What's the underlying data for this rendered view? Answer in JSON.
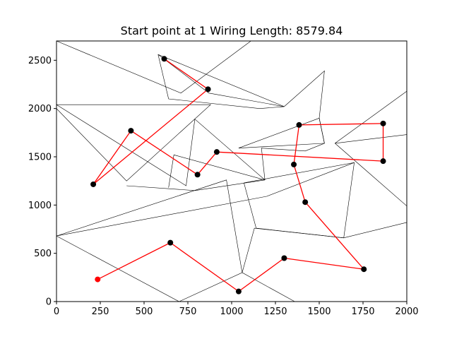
{
  "chart_data": {
    "type": "line",
    "title": "Start point at 1 Wiring Length: 8579.84",
    "xlim": [
      0,
      2000
    ],
    "ylim": [
      0,
      2700
    ],
    "x_ticks": [
      0,
      250,
      500,
      750,
      1000,
      1250,
      1500,
      1750,
      2000
    ],
    "y_ticks": [
      0,
      500,
      1000,
      1500,
      2000,
      2500
    ],
    "grid": false,
    "route_color": "#ff0000",
    "point_color": "#000000",
    "start_color": "#ff0000",
    "route": [
      [
        235,
        230
      ],
      [
        650,
        610
      ],
      [
        1040,
        105
      ],
      [
        1300,
        450
      ],
      [
        1755,
        335
      ],
      [
        1420,
        1030
      ],
      [
        1355,
        1420
      ],
      [
        1385,
        1830
      ],
      [
        1865,
        1845
      ],
      [
        1865,
        1455
      ],
      [
        915,
        1550
      ],
      [
        805,
        1315
      ],
      [
        425,
        1770
      ],
      [
        210,
        1215
      ],
      [
        865,
        2200
      ],
      [
        615,
        2515
      ]
    ],
    "background_lines": [
      [
        [
          0,
          2700
        ],
        [
          710,
          2160
        ],
        [
          1110,
          2700
        ]
      ],
      [
        [
          580,
          2560
        ],
        [
          870,
          2160
        ],
        [
          1300,
          2020
        ],
        [
          580,
          2560
        ]
      ],
      [
        [
          580,
          2560
        ],
        [
          640,
          2100
        ],
        [
          1160,
          2000
        ],
        [
          1300,
          2020
        ]
      ],
      [
        [
          0,
          2040
        ],
        [
          880,
          2040
        ],
        [
          400,
          1250
        ],
        [
          0,
          2000
        ],
        [
          0,
          2040
        ]
      ],
      [
        [
          0,
          2040
        ],
        [
          740,
          1200
        ],
        [
          790,
          1890
        ],
        [
          1190,
          1260
        ],
        [
          670,
          1520
        ],
        [
          640,
          1180
        ]
      ],
      [
        [
          400,
          1200
        ],
        [
          790,
          1150
        ],
        [
          1190,
          1260
        ]
      ],
      [
        [
          1190,
          1260
        ],
        [
          1170,
          1590
        ],
        [
          1420,
          1560
        ],
        [
          1530,
          1640
        ],
        [
          1500,
          1900
        ],
        [
          1530,
          2390
        ],
        [
          1300,
          2020
        ]
      ],
      [
        [
          1040,
          1590
        ],
        [
          1530,
          1640
        ],
        [
          1500,
          1900
        ],
        [
          1040,
          1590
        ]
      ],
      [
        [
          1590,
          1640
        ],
        [
          2000,
          2180
        ]
      ],
      [
        [
          1590,
          1640
        ],
        [
          2000,
          1730
        ]
      ],
      [
        [
          1590,
          1640
        ],
        [
          2000,
          990
        ]
      ],
      [
        [
          1070,
          1230
        ],
        [
          1140,
          760
        ],
        [
          1640,
          660
        ],
        [
          1700,
          1440
        ],
        [
          1070,
          1230
        ]
      ],
      [
        [
          1640,
          660
        ],
        [
          2000,
          820
        ]
      ],
      [
        [
          0,
          680
        ],
        [
          1200,
          1090
        ],
        [
          1700,
          1440
        ]
      ],
      [
        [
          0,
          680
        ],
        [
          700,
          0
        ],
        [
          1060,
          300
        ],
        [
          1360,
          0
        ]
      ],
      [
        [
          0,
          680
        ],
        [
          970,
          1260
        ],
        [
          1060,
          300
        ],
        [
          1130,
          760
        ],
        [
          1640,
          660
        ]
      ]
    ]
  }
}
